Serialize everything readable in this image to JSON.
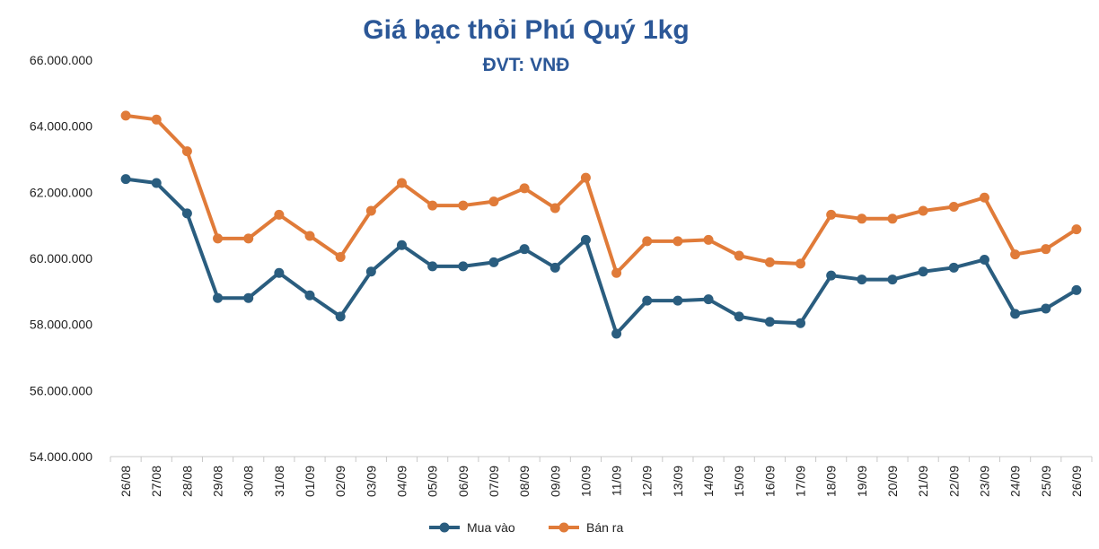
{
  "chart_data": {
    "type": "line",
    "title": "Giá bạc thỏi Phú Quý 1kg",
    "subtitle": "ĐVT: VNĐ",
    "xlabel": "",
    "ylabel": "",
    "ylim": [
      54000000,
      66000000
    ],
    "y_ticks": [
      "54.000.000",
      "56.000.000",
      "58.000.000",
      "60.000.000",
      "62.000.000",
      "64.000.000",
      "66.000.000"
    ],
    "categories": [
      "26/08",
      "27/08",
      "28/08",
      "29/08",
      "30/08",
      "31/08",
      "01/09",
      "02/09",
      "03/09",
      "04/09",
      "05/09",
      "06/09",
      "07/09",
      "08/09",
      "09/09",
      "10/09",
      "11/09",
      "12/09",
      "13/09",
      "14/09",
      "15/09",
      "16/09",
      "17/09",
      "18/09",
      "19/09",
      "20/09",
      "21/09",
      "22/09",
      "23/09",
      "24/09",
      "25/09",
      "26/09"
    ],
    "series": [
      {
        "name": "Mua vào",
        "color": "#2a5d7f",
        "values": [
          62400000,
          62280000,
          61360000,
          58800000,
          58800000,
          59560000,
          58880000,
          58240000,
          59600000,
          60400000,
          59760000,
          59760000,
          59880000,
          60280000,
          59720000,
          60560000,
          57720000,
          58720000,
          58720000,
          58760000,
          58240000,
          58080000,
          58040000,
          59480000,
          59360000,
          59360000,
          59600000,
          59720000,
          59960000,
          58320000,
          58480000,
          59040000
        ]
      },
      {
        "name": "Bán ra",
        "color": "#e07b39",
        "values": [
          64320000,
          64200000,
          63240000,
          60600000,
          60600000,
          61320000,
          60680000,
          60040000,
          61440000,
          62280000,
          61600000,
          61600000,
          61720000,
          62120000,
          61520000,
          62440000,
          59560000,
          60520000,
          60520000,
          60560000,
          60080000,
          59880000,
          59840000,
          61320000,
          61200000,
          61200000,
          61440000,
          61560000,
          61840000,
          60120000,
          60280000,
          60880000
        ]
      }
    ],
    "grid": false,
    "legend_position": "bottom-center",
    "title_color": "#2b5797"
  }
}
